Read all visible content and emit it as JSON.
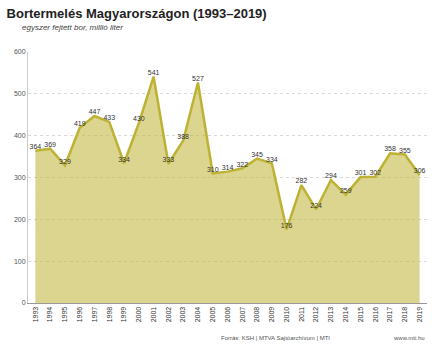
{
  "chart_data": {
    "type": "area",
    "title": "Bortermelés Magyarországon (1993–2019)",
    "subtitle": "egyszer fejtett bor, millió liter",
    "categories": [
      "1993",
      "1994",
      "1995",
      "1996",
      "1997",
      "1998",
      "1999",
      "2000",
      "2001",
      "2002",
      "2003",
      "2004",
      "2005",
      "2006",
      "2007",
      "2008",
      "2009",
      "2010",
      "2011",
      "2012",
      "2013",
      "2014",
      "2015",
      "2016",
      "2017",
      "2018",
      "2019"
    ],
    "values": [
      364,
      369,
      329,
      419,
      447,
      433,
      334,
      430,
      541,
      333,
      388,
      527,
      310,
      314,
      322,
      345,
      334,
      176,
      282,
      224,
      294,
      259,
      301,
      302,
      358,
      355,
      306
    ],
    "color": "#bdb233",
    "ylim": [
      0,
      600
    ],
    "yticks": [
      0,
      100,
      200,
      300,
      400,
      500,
      600
    ],
    "grid": true,
    "data_labels": true,
    "source": "Forrás: KSH | MTVA Sajtóarchívum | MTI",
    "website": "www.mti.hu"
  }
}
